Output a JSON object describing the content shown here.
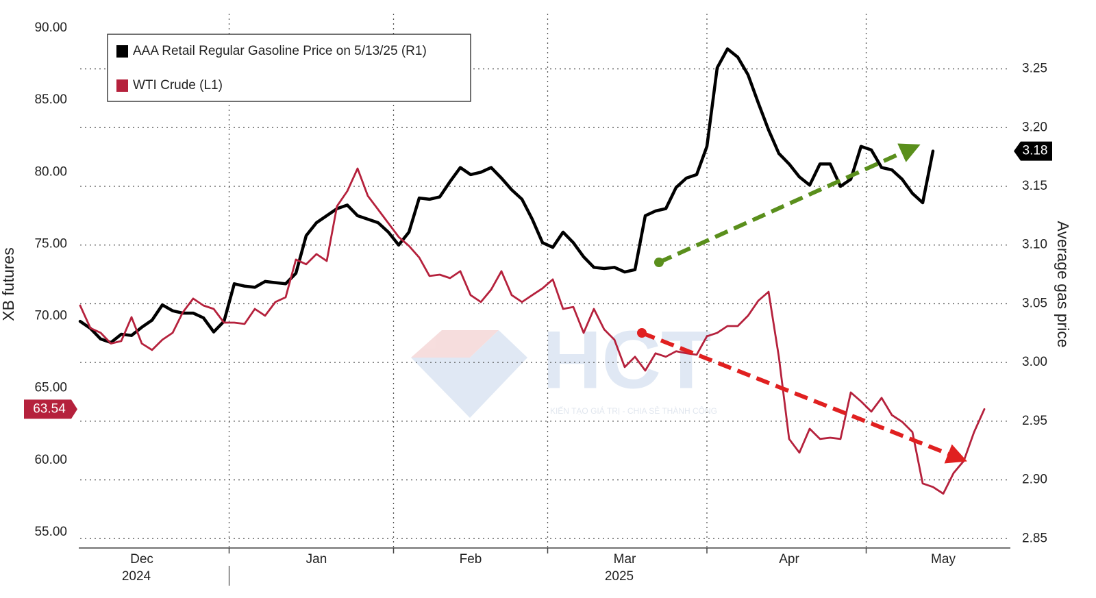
{
  "chart_data": {
    "type": "line",
    "ylabel": "XB futures",
    "y2label": "Average gas price",
    "categories": [
      null,
      null,
      null,
      null,
      null,
      null,
      "Dec",
      null,
      null,
      null,
      null,
      null,
      null,
      null,
      null,
      null,
      null,
      null,
      null,
      null,
      null,
      null,
      null,
      "Jan",
      null,
      null,
      null,
      null,
      null,
      null,
      null,
      null,
      null,
      null,
      null,
      null,
      null,
      null,
      "Feb",
      null,
      null,
      null,
      null,
      null,
      null,
      null,
      null,
      null,
      null,
      null,
      null,
      null,
      null,
      "Mar",
      null,
      null,
      null,
      null,
      null,
      null,
      null,
      null,
      null,
      null,
      null,
      null,
      null,
      null,
      null,
      "Apr",
      null,
      null,
      null,
      null,
      null,
      null,
      null,
      null,
      null,
      null,
      null,
      null,
      null,
      null,
      "May",
      null,
      null,
      null,
      null
    ],
    "category_years": [
      null,
      null,
      null,
      null,
      null,
      null,
      "2024",
      null,
      null,
      null,
      null,
      null,
      null,
      null,
      null,
      null,
      null,
      null,
      null,
      null,
      null,
      null,
      null,
      null,
      null,
      null,
      null,
      null,
      null,
      null,
      null,
      null,
      null,
      null,
      null,
      null,
      null,
      null,
      null,
      null,
      null,
      null,
      null,
      null,
      null,
      null,
      null,
      null,
      null,
      null,
      null,
      null,
      null,
      "2025",
      null,
      null,
      null,
      null,
      null,
      null,
      null,
      null,
      null,
      null,
      null,
      null,
      null,
      null,
      null,
      null,
      null,
      null,
      null,
      null,
      null,
      null,
      null,
      null,
      null,
      null,
      null,
      null,
      null,
      null,
      null,
      null,
      null,
      null,
      null
    ],
    "series": [
      {
        "name": "AAA Retail Regular Gasoline Price on 5/13/25 (R1)",
        "color": "#000000",
        "axis": "y2",
        "values": [
          3.035,
          3.029,
          3.02,
          3.017,
          3.024,
          3.023,
          3.03,
          3.036,
          3.049,
          3.044,
          3.042,
          3.042,
          3.038,
          3.026,
          3.035,
          3.067,
          3.065,
          3.064,
          3.069,
          3.068,
          3.067,
          3.076,
          3.108,
          3.119,
          3.125,
          3.131,
          3.134,
          3.125,
          3.122,
          3.119,
          3.111,
          3.1,
          3.111,
          3.14,
          3.139,
          3.141,
          3.154,
          3.166,
          3.16,
          3.162,
          3.166,
          3.157,
          3.147,
          3.139,
          3.122,
          3.102,
          3.098,
          3.111,
          3.102,
          3.09,
          3.081,
          3.08,
          3.081,
          3.077,
          3.079,
          3.125,
          3.129,
          3.131,
          3.149,
          3.157,
          3.16,
          3.184,
          3.251,
          3.267,
          3.26,
          3.245,
          3.221,
          3.198,
          3.178,
          3.169,
          3.158,
          3.151,
          3.169,
          3.169,
          3.15,
          3.156,
          3.184,
          3.181,
          3.166,
          3.164,
          3.156,
          3.144,
          3.136,
          3.18,
          null,
          null,
          null,
          null,
          null
        ]
      },
      {
        "name": "WTI Crude (L1)",
        "color": "#b5213c",
        "values": [
          70.74,
          69.17,
          68.84,
          68.1,
          68.27,
          69.93,
          68.1,
          67.65,
          68.36,
          68.84,
          70.27,
          71.22,
          70.74,
          70.5,
          69.55,
          69.55,
          69.46,
          70.5,
          70.03,
          70.98,
          71.31,
          73.93,
          73.6,
          74.31,
          73.83,
          77.64,
          78.68,
          80.25,
          78.35,
          77.4,
          76.45,
          75.5,
          74.88,
          74.07,
          72.79,
          72.88,
          72.64,
          73.12,
          71.46,
          70.98,
          71.84,
          73.12,
          71.46,
          70.98,
          71.46,
          71.93,
          72.55,
          70.5,
          70.64,
          68.84,
          70.5,
          69.08,
          68.36,
          66.46,
          67.18,
          66.22,
          67.42,
          67.18,
          67.56,
          67.42,
          67.32,
          68.6,
          68.84,
          69.31,
          69.31,
          70.03,
          71.07,
          71.69,
          67.18,
          61.47,
          60.52,
          62.18,
          61.47,
          61.56,
          61.47,
          64.7,
          64.08,
          63.37,
          64.32,
          63.13,
          62.66,
          61.95,
          58.38,
          58.14,
          57.67,
          59.1,
          59.95,
          61.95,
          63.54
        ]
      }
    ],
    "ylim": [
      53.9,
      91
    ],
    "yticks": [
      {
        "value": 55,
        "label": "55.00"
      },
      {
        "value": 60,
        "label": "60.00"
      },
      {
        "value": 65,
        "label": "65.00"
      },
      {
        "value": 70,
        "label": "70.00"
      },
      {
        "value": 75,
        "label": "75.00"
      },
      {
        "value": 80,
        "label": "80.00"
      },
      {
        "value": 85,
        "label": "85.00"
      },
      {
        "value": 90,
        "label": "90.00"
      }
    ],
    "y2lim": [
      2.842,
      3.297
    ],
    "y2ticks": [
      2.85,
      {
        "value": 2.9,
        "label": "2.90"
      },
      2.95,
      {
        "value": 3.0,
        "label": "3.00"
      },
      3.05,
      {
        "value": 3.1,
        "label": "3.10"
      },
      3.15,
      {
        "value": 3.2,
        "label": "3.20"
      },
      3.25
    ],
    "grid": true,
    "legend": "upper left"
  },
  "watermark": {
    "text": "HCT",
    "tagline": "KIẾN TẠO GIÁ TRỊ - CHIA SẺ THÀNH CÔNG"
  }
}
